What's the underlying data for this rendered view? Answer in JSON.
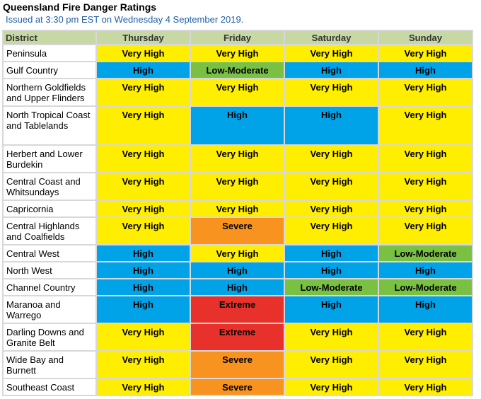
{
  "title": "Queensland Fire Danger Ratings",
  "issued": "Issued at 3:30 pm EST on Wednesday 4 September 2019.",
  "columns": [
    "District",
    "Thursday",
    "Friday",
    "Saturday",
    "Sunday"
  ],
  "rating_colors": {
    "Very High": "#ffee00",
    "High": "#00a2e8",
    "Low-Moderate": "#7ac143",
    "Severe": "#f7931e",
    "Extreme": "#e8312a"
  },
  "rows": [
    {
      "district": "Peninsula",
      "ratings": [
        "Very High",
        "Very High",
        "Very High",
        "Very High"
      ]
    },
    {
      "district": "Gulf Country",
      "ratings": [
        "High",
        "Low-Moderate",
        "High",
        "High"
      ]
    },
    {
      "district": "Northern Goldfields and Upper Flinders",
      "ratings": [
        "Very High",
        "Very High",
        "Very High",
        "Very High"
      ]
    },
    {
      "district": "North Tropical Coast and Tablelands",
      "ratings": [
        "Very High",
        "High",
        "High",
        "Very High"
      ]
    },
    {
      "district": "Herbert and Lower Burdekin",
      "ratings": [
        "Very High",
        "Very High",
        "Very High",
        "Very High"
      ]
    },
    {
      "district": "Central Coast and Whitsundays",
      "ratings": [
        "Very High",
        "Very High",
        "Very High",
        "Very High"
      ]
    },
    {
      "district": "Capricornia",
      "ratings": [
        "Very High",
        "Very High",
        "Very High",
        "Very High"
      ]
    },
    {
      "district": "Central Highlands and Coalfields",
      "ratings": [
        "Very High",
        "Severe",
        "Very High",
        "Very High"
      ]
    },
    {
      "district": "Central West",
      "ratings": [
        "High",
        "Very High",
        "High",
        "Low-Moderate"
      ]
    },
    {
      "district": "North West",
      "ratings": [
        "High",
        "High",
        "High",
        "High"
      ]
    },
    {
      "district": "Channel Country",
      "ratings": [
        "High",
        "High",
        "Low-Moderate",
        "Low-Moderate"
      ]
    },
    {
      "district": "Maranoa and Warrego",
      "ratings": [
        "High",
        "Extreme",
        "High",
        "High"
      ]
    },
    {
      "district": "Darling Downs and Granite Belt",
      "ratings": [
        "Very High",
        "Extreme",
        "Very High",
        "Very High"
      ]
    },
    {
      "district": "Wide Bay and Burnett",
      "ratings": [
        "Very High",
        "Severe",
        "Very High",
        "Very High"
      ]
    },
    {
      "district": "Southeast Coast",
      "ratings": [
        "Very High",
        "Severe",
        "Very High",
        "Very High"
      ]
    }
  ]
}
